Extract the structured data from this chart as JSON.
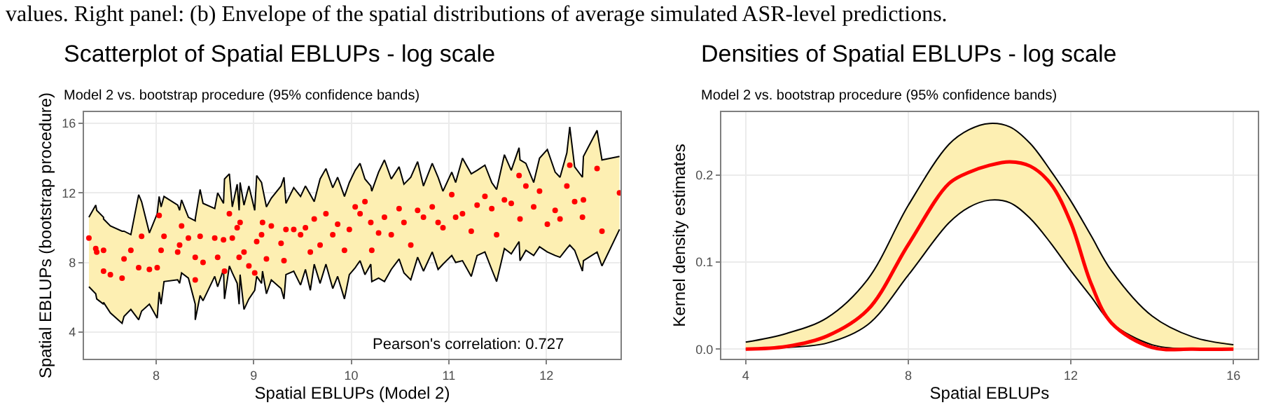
{
  "chart_data": [
    {
      "type": "other",
      "annotations": [
        "values. Right panel: (b) Envelope of the spatial distributions of average simulated ASR-level predictions."
      ]
    },
    {
      "type": "scatter",
      "title": "Scatterplot of Spatial EBLUPs - log scale",
      "subtitle": "Model 2 vs. bootstrap procedure (95% confidence bands)",
      "xlabel": "Spatial EBLUPs (Model 2)",
      "ylabel": "Spatial EBLUPs (bootstrap procedure)",
      "annotations": [
        "Pearson's correlation: 0.727"
      ],
      "xlim": [
        7.26,
        12.76
      ],
      "xticks": [
        8,
        9,
        10,
        11,
        12
      ],
      "ylim": [
        2.46,
        16.65
      ],
      "yticks": [
        4,
        8,
        12,
        16
      ],
      "grid": true,
      "x": [
        7.31,
        7.38,
        7.39,
        7.46,
        7.46,
        7.53,
        7.65,
        7.67,
        7.74,
        7.82,
        7.85,
        7.93,
        8.01,
        8.03,
        8.05,
        8.08,
        8.22,
        8.24,
        8.26,
        8.33,
        8.4,
        8.4,
        8.45,
        8.48,
        8.6,
        8.63,
        8.69,
        8.7,
        8.75,
        8.78,
        8.83,
        8.85,
        8.86,
        8.9,
        8.95,
        9.01,
        9.03,
        9.08,
        9.09,
        9.13,
        9.18,
        9.28,
        9.31,
        9.33,
        9.41,
        9.48,
        9.53,
        9.58,
        9.62,
        9.68,
        9.74,
        9.81,
        9.86,
        9.93,
        9.98,
        10.04,
        10.09,
        10.14,
        10.2,
        10.21,
        10.28,
        10.34,
        10.41,
        10.49,
        10.54,
        10.61,
        10.68,
        10.74,
        10.83,
        10.89,
        10.94,
        11.03,
        11.07,
        11.14,
        11.23,
        11.29,
        11.37,
        11.44,
        11.49,
        11.57,
        11.64,
        11.72,
        11.73,
        11.79,
        11.87,
        11.93,
        12.01,
        12.09,
        12.14,
        12.21,
        12.24,
        12.29,
        12.37,
        12.38,
        12.52,
        12.57,
        12.75
      ],
      "series": [
        {
          "color": "#ff0000",
          "marker": "circle",
          "values": [
            9.4,
            8.8,
            8.6,
            8.7,
            7.5,
            7.3,
            7.1,
            8.2,
            8.7,
            7.7,
            9.5,
            7.6,
            7.7,
            10.7,
            8.7,
            9.5,
            8.6,
            9.0,
            10.1,
            9.4,
            8.3,
            7.0,
            9.5,
            8.0,
            9.4,
            8.3,
            9.3,
            7.5,
            10.8,
            9.4,
            10.0,
            8.3,
            10.3,
            8.6,
            7.8,
            7.4,
            9.2,
            9.6,
            10.3,
            8.2,
            10.1,
            9.1,
            8.1,
            9.9,
            9.9,
            9.6,
            10.0,
            8.6,
            10.5,
            9.0,
            10.8,
            9.6,
            10.2,
            8.7,
            9.9,
            11.2,
            10.8,
            11.5,
            10.3,
            8.7,
            9.7,
            10.6,
            9.6,
            11.1,
            10.3,
            9.0,
            11.0,
            10.6,
            11.2,
            10.3,
            10.0,
            11.9,
            10.6,
            10.8,
            9.8,
            11.3,
            11.8,
            11.1,
            9.6,
            11.6,
            11.4,
            13.0,
            10.5,
            12.4,
            11.2,
            12.1,
            10.2,
            11.0,
            10.5,
            12.4,
            13.6,
            11.5,
            10.6,
            11.6,
            13.4,
            9.8,
            12.0
          ],
          "lower": [
            6.6,
            6.2,
            5.9,
            5.6,
            5.7,
            5.1,
            4.5,
            4.9,
            5.3,
            4.7,
            5.2,
            5.6,
            4.8,
            6.3,
            5.6,
            6.9,
            7.0,
            6.8,
            7.4,
            7.1,
            5.6,
            4.7,
            6.1,
            5.8,
            7.2,
            6.6,
            7.6,
            5.9,
            7.8,
            7.4,
            6.8,
            5.6,
            7.3,
            5.3,
            5.9,
            6.4,
            7.2,
            6.8,
            7.5,
            6.2,
            7.0,
            6.5,
            5.9,
            7.3,
            7.5,
            6.7,
            7.6,
            6.4,
            7.9,
            6.8,
            7.9,
            6.5,
            7.2,
            5.9,
            7.3,
            7.7,
            8.1,
            7.3,
            7.9,
            6.9,
            7.1,
            6.9,
            7.6,
            8.2,
            7.4,
            7.0,
            8.3,
            7.5,
            8.6,
            7.6,
            7.9,
            8.4,
            8.0,
            8.1,
            7.2,
            8.4,
            8.6,
            7.6,
            6.9,
            8.8,
            8.5,
            9.2,
            8.1,
            8.7,
            8.4,
            8.9,
            8.6,
            8.4,
            8.3,
            8.8,
            9.0,
            8.7,
            7.5,
            8.1,
            8.6,
            7.8,
            9.9
          ],
          "upper": [
            10.6,
            11.3,
            11.0,
            10.6,
            10.5,
            10.1,
            9.8,
            9.8,
            9.6,
            11.9,
            11.5,
            9.7,
            10.8,
            11.8,
            11.2,
            11.8,
            11.3,
            11.0,
            11.6,
            10.6,
            10.4,
            10.5,
            12.2,
            11.4,
            11.1,
            12.0,
            11.4,
            12.8,
            13.1,
            11.2,
            12.5,
            11.0,
            12.6,
            11.3,
            12.4,
            11.0,
            13.0,
            12.6,
            12.3,
            11.2,
            11.7,
            12.4,
            12.9,
            11.4,
            12.3,
            11.8,
            12.4,
            11.9,
            11.5,
            12.8,
            13.4,
            12.3,
            12.9,
            11.8,
            12.6,
            13.3,
            13.7,
            12.8,
            12.4,
            12.1,
            13.2,
            13.9,
            12.8,
            13.5,
            12.5,
            12.9,
            13.8,
            12.4,
            13.7,
            12.9,
            12.1,
            13.2,
            12.6,
            14.0,
            13.1,
            13.3,
            13.6,
            12.6,
            12.2,
            14.2,
            13.3,
            14.6,
            13.9,
            13.7,
            12.6,
            14.0,
            14.5,
            13.2,
            12.9,
            14.3,
            15.8,
            13.5,
            12.9,
            14.1,
            15.6,
            13.9,
            14.1
          ]
        },
        {
          "type": "line",
          "color": "#000000",
          "values": [
            6.6,
            6.2,
            5.9,
            5.6,
            5.7,
            5.1,
            4.5,
            4.9,
            5.3,
            4.7,
            5.2,
            5.6,
            4.8,
            6.3,
            5.6,
            6.9,
            7.0,
            6.8,
            7.4,
            7.1,
            5.6,
            4.7,
            6.1,
            5.8,
            7.2,
            6.6,
            7.6,
            5.9,
            7.8,
            7.4,
            6.8,
            5.6,
            7.3,
            5.3,
            5.9,
            6.4,
            7.2,
            6.8,
            7.5,
            6.2,
            7.0,
            6.5,
            5.9,
            7.3,
            7.5,
            6.7,
            7.6,
            6.4,
            7.9,
            6.8,
            7.9,
            6.5,
            7.2,
            5.9,
            7.3,
            7.7,
            8.1,
            7.3,
            7.9,
            6.9,
            7.1,
            6.9,
            7.6,
            8.2,
            7.4,
            7.0,
            8.3,
            7.5,
            8.6,
            7.6,
            7.9,
            8.4,
            8.0,
            8.1,
            7.2,
            8.4,
            8.6,
            7.6,
            6.9,
            8.8,
            8.5,
            9.2,
            8.1,
            8.7,
            8.4,
            8.9,
            8.6,
            8.4,
            8.3,
            8.8,
            9.0,
            8.7,
            7.5,
            8.1,
            8.6,
            7.8,
            9.9
          ]
        },
        {
          "type": "line",
          "color": "#000000",
          "values": [
            10.6,
            11.3,
            11.0,
            10.6,
            10.5,
            10.1,
            9.8,
            9.8,
            9.6,
            11.9,
            11.5,
            9.7,
            10.8,
            11.8,
            11.2,
            11.8,
            11.3,
            11.0,
            11.6,
            10.6,
            10.4,
            10.5,
            12.2,
            11.4,
            11.1,
            12.0,
            11.4,
            12.8,
            13.1,
            11.2,
            12.5,
            11.0,
            12.6,
            11.3,
            12.4,
            11.0,
            13.0,
            12.6,
            12.3,
            11.2,
            11.7,
            12.4,
            12.9,
            11.4,
            12.3,
            11.8,
            12.4,
            11.9,
            11.5,
            12.8,
            13.4,
            12.3,
            12.9,
            11.8,
            12.6,
            13.3,
            13.7,
            12.8,
            12.4,
            12.1,
            13.2,
            13.9,
            12.8,
            13.5,
            12.5,
            12.9,
            13.8,
            12.4,
            13.7,
            12.9,
            12.1,
            13.2,
            12.6,
            14.0,
            13.1,
            13.3,
            13.6,
            12.6,
            12.2,
            14.2,
            13.3,
            14.6,
            13.9,
            13.7,
            12.6,
            14.0,
            14.5,
            13.2,
            12.9,
            14.3,
            15.8,
            13.5,
            12.9,
            14.1,
            15.6,
            13.9,
            14.1
          ]
        }
      ]
    },
    {
      "type": "line",
      "title": "Densities of Spatial EBLUPs - log scale",
      "subtitle": "Model 2 vs. bootstrap procedure (95% confidence bands)",
      "xlabel": "Spatial EBLUPs",
      "ylabel": "Kernel density estimates",
      "xlim": [
        3.4,
        16.6
      ],
      "xticks": [
        4,
        8,
        12,
        16
      ],
      "ylim": [
        -0.011,
        0.272
      ],
      "yticks": [
        {
          "value": 0,
          "label": "0.0"
        },
        0.1,
        0.2
      ],
      "grid": true,
      "x": [
        4,
        5,
        6,
        7,
        8,
        9,
        9.5,
        10,
        10.5,
        11,
        11.5,
        12,
        12.5,
        13,
        14,
        15,
        16
      ],
      "series": [
        {
          "color": "#ff0000",
          "values": [
            0.0,
            0.003,
            0.015,
            0.045,
            0.12,
            0.19,
            0.203,
            0.211,
            0.215,
            0.21,
            0.19,
            0.145,
            0.075,
            0.03,
            0.002,
            0.0,
            0.0
          ],
          "lower": [
            0.0,
            0.002,
            0.007,
            0.028,
            0.085,
            0.145,
            0.163,
            0.171,
            0.168,
            0.15,
            0.122,
            0.09,
            0.06,
            0.03,
            0.005,
            0.0,
            0.0
          ],
          "upper": [
            0.008,
            0.018,
            0.036,
            0.08,
            0.165,
            0.235,
            0.252,
            0.259,
            0.255,
            0.236,
            0.205,
            0.17,
            0.13,
            0.09,
            0.038,
            0.014,
            0.005
          ]
        },
        {
          "type": "line",
          "color": "#000000",
          "values": [
            0.0,
            0.002,
            0.007,
            0.028,
            0.085,
            0.145,
            0.163,
            0.171,
            0.168,
            0.15,
            0.122,
            0.09,
            0.06,
            0.03,
            0.005,
            0.0,
            0.0
          ]
        },
        {
          "type": "line",
          "color": "#000000",
          "values": [
            0.008,
            0.018,
            0.036,
            0.08,
            0.165,
            0.235,
            0.252,
            0.259,
            0.255,
            0.236,
            0.205,
            0.17,
            0.13,
            0.09,
            0.038,
            0.014,
            0.005
          ]
        }
      ]
    }
  ]
}
